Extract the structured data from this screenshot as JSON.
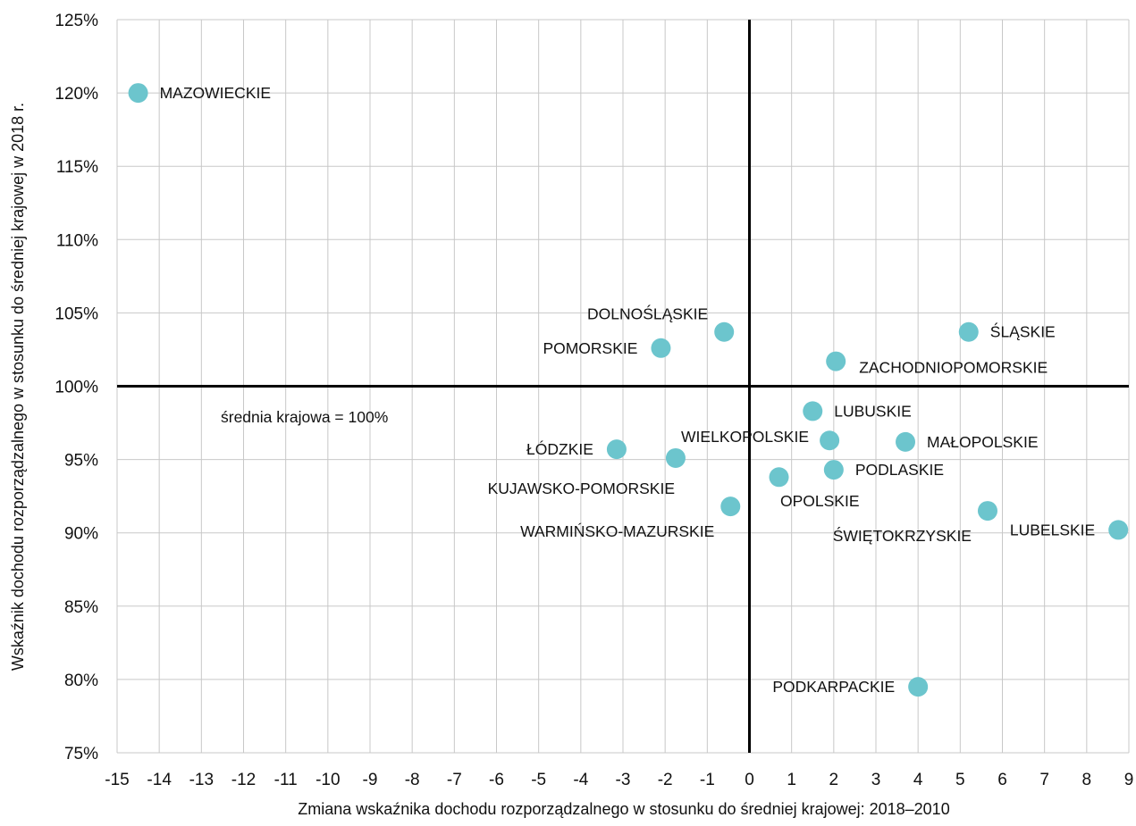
{
  "chart_data": {
    "type": "scatter",
    "xlabel": "Zmiana wskaźnika dochodu rozporządzalnego w stosunku do średniej krajowej: 2018–2010",
    "ylabel": "Wskaźnik dochodu rozporządzalnego w stosunku do średniej krajowej w 2018 r.",
    "xlim": [
      -15,
      9
    ],
    "ylim": [
      75,
      125
    ],
    "x_ticks": [
      "-15",
      "-14",
      "-13",
      "-12",
      "-11",
      "-10",
      "-9",
      "-8",
      "-7",
      "-6",
      "-5",
      "-4",
      "-3",
      "-2",
      "-1",
      "0",
      "1",
      "2",
      "3",
      "4",
      "5",
      "6",
      "7",
      "8",
      "9"
    ],
    "y_ticks": [
      "75%",
      "80%",
      "85%",
      "90%",
      "95%",
      "100%",
      "105%",
      "110%",
      "115%",
      "120%",
      "125%"
    ],
    "grid": true,
    "reference_lines": {
      "x": 0,
      "y": 100
    },
    "annotation": "średnia krajowa = 100%",
    "marker_color": "#6cc5cd",
    "points": [
      {
        "label": "MAZOWIECKIE",
        "x": -14.5,
        "y": 120.0,
        "label_pos": "right"
      },
      {
        "label": "DOLNOŚLĄSKIE",
        "x": -0.6,
        "y": 103.7,
        "label_pos": "above-left"
      },
      {
        "label": "POMORSKIE",
        "x": -2.1,
        "y": 102.6,
        "label_pos": "left"
      },
      {
        "label": "ŚLĄSKIE",
        "x": 5.2,
        "y": 103.7,
        "label_pos": "right"
      },
      {
        "label": "ZACHODNIOPOMORSKIE",
        "x": 2.05,
        "y": 101.7,
        "label_pos": "below-right"
      },
      {
        "label": "LUBUSKIE",
        "x": 1.5,
        "y": 98.3,
        "label_pos": "right"
      },
      {
        "label": "WIELKOPOLSKIE",
        "x": 1.9,
        "y": 96.3,
        "label_pos": "above-left"
      },
      {
        "label": "MAŁOPOLSKIE",
        "x": 3.7,
        "y": 96.2,
        "label_pos": "right"
      },
      {
        "label": "ŁÓDZKIE",
        "x": -3.15,
        "y": 95.7,
        "label_pos": "left"
      },
      {
        "label": "KUJAWSKO-POMORSKIE",
        "x": -1.75,
        "y": 95.1,
        "label_pos": "below-left"
      },
      {
        "label": "PODLASKIE",
        "x": 2.0,
        "y": 94.3,
        "label_pos": "right"
      },
      {
        "label": "OPOLSKIE",
        "x": 0.7,
        "y": 93.8,
        "label_pos": "below-right"
      },
      {
        "label": "WARMIŃSKO-MAZURSKIE",
        "x": -0.45,
        "y": 91.8,
        "label_pos": "below-left"
      },
      {
        "label": "ŚWIĘTOKRZYSKIE",
        "x": 5.65,
        "y": 91.5,
        "label_pos": "below-left"
      },
      {
        "label": "LUBELSKIE",
        "x": 8.75,
        "y": 90.2,
        "label_pos": "left"
      },
      {
        "label": "PODKARPACKIE",
        "x": 4.0,
        "y": 79.5,
        "label_pos": "left"
      }
    ]
  }
}
